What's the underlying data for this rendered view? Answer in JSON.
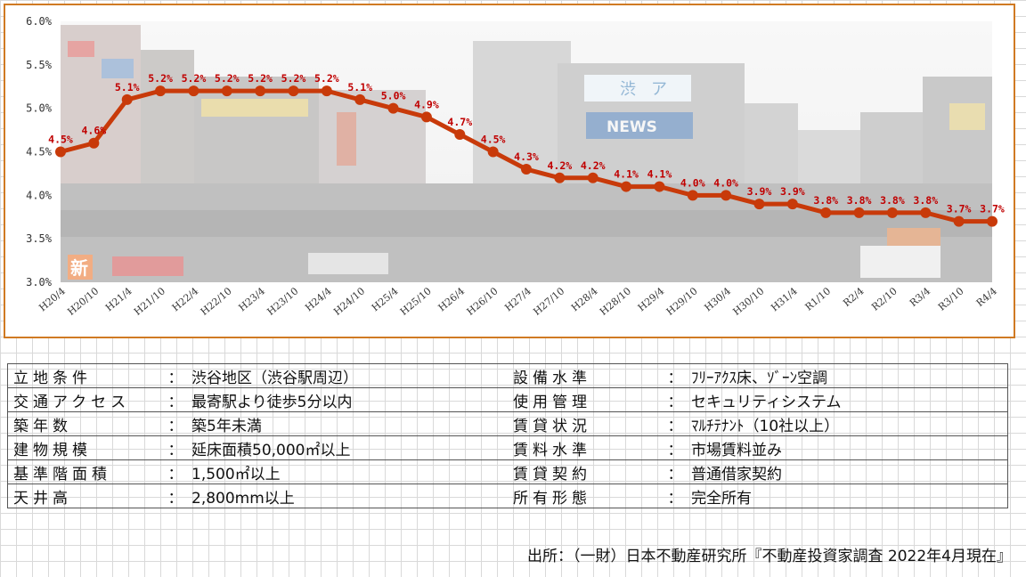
{
  "chart_data": {
    "type": "line",
    "title": "",
    "xlabel": "",
    "ylabel": "",
    "ylim": [
      3.0,
      6.0
    ],
    "y_ticks": [
      "6.0%",
      "5.5%",
      "5.0%",
      "4.5%",
      "4.0%",
      "3.5%",
      "3.0%"
    ],
    "y_tick_values": [
      6.0,
      5.5,
      5.0,
      4.5,
      4.0,
      3.5,
      3.0
    ],
    "categories": [
      "H20/4",
      "H20/10",
      "H21/4",
      "H21/10",
      "H22/4",
      "H22/10",
      "H23/4",
      "H23/10",
      "H24/4",
      "H24/10",
      "H25/4",
      "H25/10",
      "H26/4",
      "H26/10",
      "H27/4",
      "H27/10",
      "H28/4",
      "H28/10",
      "H29/4",
      "H29/10",
      "H30/4",
      "H30/10",
      "H31/4",
      "R1/10",
      "R2/4",
      "R2/10",
      "R3/4",
      "R3/10",
      "R4/4"
    ],
    "values": [
      4.5,
      4.6,
      5.1,
      5.2,
      5.2,
      5.2,
      5.2,
      5.2,
      5.2,
      5.1,
      5.0,
      4.9,
      4.7,
      4.5,
      4.3,
      4.2,
      4.2,
      4.1,
      4.1,
      4.0,
      4.0,
      3.9,
      3.9,
      3.8,
      3.8,
      3.8,
      3.8,
      3.7,
      3.7
    ],
    "data_labels": [
      "4.5%",
      "4.6%",
      "5.1%",
      "5.2%",
      "5.2%",
      "5.2%",
      "5.2%",
      "5.2%",
      "5.2%",
      "5.1%",
      "5.0%",
      "4.9%",
      "4.7%",
      "4.5%",
      "4.3%",
      "4.2%",
      "4.2%",
      "4.1%",
      "4.1%",
      "4.0%",
      "4.0%",
      "3.9%",
      "3.9%",
      "3.8%",
      "3.8%",
      "3.8%",
      "3.8%",
      "3.7%",
      "3.7%"
    ],
    "grid": false,
    "colors": {
      "line": "#c83a0a",
      "label": "#c00000",
      "frame": "#d07a23"
    }
  },
  "background_photo": {
    "sign_top": "渋",
    "sign_top_2": "ア",
    "sign_news": "NEWS",
    "sign_badge": "新"
  },
  "spec_table": {
    "left": [
      {
        "label": "立地条件",
        "value": "渋谷地区（渋谷駅周辺）"
      },
      {
        "label": "交通アクセス",
        "value": "最寄駅より徒歩5分以内"
      },
      {
        "label": "築年数",
        "value": "築5年未満"
      },
      {
        "label": "建物規模",
        "value": "延床面積50,000㎡以上"
      },
      {
        "label": "基準階面積",
        "value": "1,500㎡以上"
      },
      {
        "label": "天井高",
        "value": "2,800mm以上"
      }
    ],
    "right": [
      {
        "label": "設備水準",
        "value": "ﾌﾘｰｱｸｽ床、ｿﾞｰﾝ空調"
      },
      {
        "label": "使用管理",
        "value": "セキュリティシステム"
      },
      {
        "label": "賃貸状況",
        "value": "ﾏﾙﾁﾃﾅﾝﾄ（10社以上）"
      },
      {
        "label": "賃料水準",
        "value": "市場賃料並み"
      },
      {
        "label": "賃貸契約",
        "value": "普通借家契約"
      },
      {
        "label": "所有形態",
        "value": "完全所有"
      }
    ],
    "colon": "："
  },
  "source_note": "出所：（一財）日本不動産研究所『不動産投資家調査 2022年4月現在』"
}
